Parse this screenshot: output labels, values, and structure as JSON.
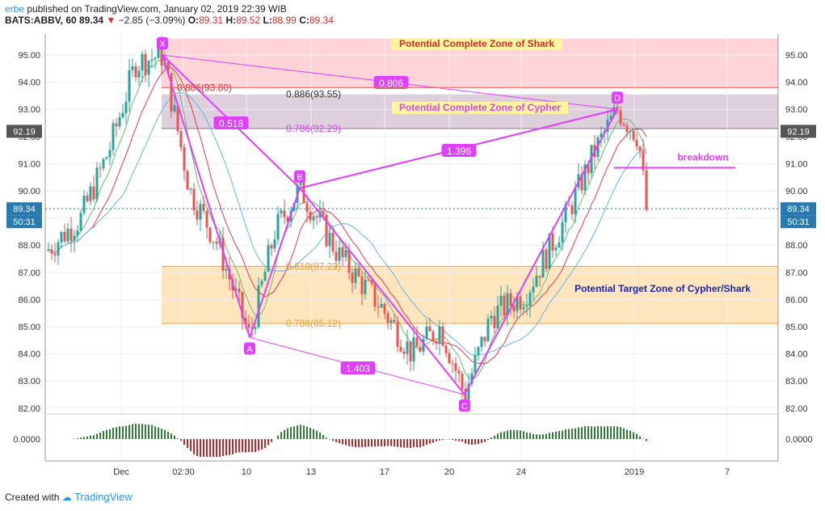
{
  "header": {
    "user": "erbe",
    "published": "published on TradingView.com, January 02, 2019 22:39 WIB",
    "symbol": "BATS:ABBV, 60",
    "last": "89.34",
    "change": "−2.85 (−3.09%)",
    "open_label": "O:",
    "open": "89.31",
    "high_label": "H:",
    "high": "89.52",
    "low_label": "L:",
    "low": "88.99",
    "close_label": "C:",
    "close": "89.34"
  },
  "footer": {
    "created": "Created with",
    "brand": "TradingView"
  },
  "colors": {
    "up": "#26a69a",
    "down": "#ef5350",
    "pattern": "#e040fb",
    "shark_zone": "#ffcdd2",
    "cypher_zone": "#d7c8d6",
    "target_zone": "#ffe0b2",
    "ma_green": "#66bb6a",
    "ma_red": "#e53950",
    "ma_blue": "#64b5e6"
  },
  "chart_data": {
    "type": "candlestick",
    "ylim": [
      81.6,
      95.6
    ],
    "y_ticks": [
      "95.00",
      "94.00",
      "93.00",
      "92.00",
      "91.00",
      "90.00",
      "89.00",
      "88.00",
      "87.00",
      "86.00",
      "85.00",
      "84.00",
      "83.00",
      "82.00"
    ],
    "x_ticks": [
      "Dec",
      "02:30",
      "10",
      "13",
      "17",
      "20",
      "24",
      "2019",
      "7"
    ],
    "price_tags": [
      {
        "label": "92.19",
        "value": 92.19,
        "timer": ""
      },
      {
        "label": "89.34",
        "value": 89.34,
        "timer": "50:31"
      }
    ],
    "pattern_points": [
      {
        "label": "X",
        "value": 95.0
      },
      {
        "label": "A",
        "value": 84.6
      },
      {
        "label": "B",
        "value": 90.1
      },
      {
        "label": "C",
        "value": 82.5
      },
      {
        "label": "D",
        "value": 93.0
      }
    ],
    "ratios": [
      {
        "label": "0.518"
      },
      {
        "label": "0.806"
      },
      {
        "label": "1.396"
      },
      {
        "label": "1.403"
      }
    ],
    "zones": [
      {
        "name": "Potential Complete Zone of Shark",
        "from": 93.8,
        "to": 95.6
      },
      {
        "name": "Potential Complete Zone of Cypher",
        "from": 92.29,
        "to": 93.55
      },
      {
        "name": "Potential Target Zone of Cypher/Shark",
        "from": 85.12,
        "to": 87.22
      }
    ],
    "levels": [
      {
        "label": "0.886(93.80)",
        "value": 93.8
      },
      {
        "label": "0.886(93.55)",
        "value": 93.55
      },
      {
        "label": "0.786(92.29)",
        "value": 92.29
      },
      {
        "label": "0.618(87.22)",
        "value": 87.22
      },
      {
        "label": "0.786(85.12)",
        "value": 85.12
      }
    ],
    "breakdown": {
      "label": "breakdown",
      "value": 90.85
    },
    "oscillator": {
      "tick": "0.0000"
    }
  }
}
